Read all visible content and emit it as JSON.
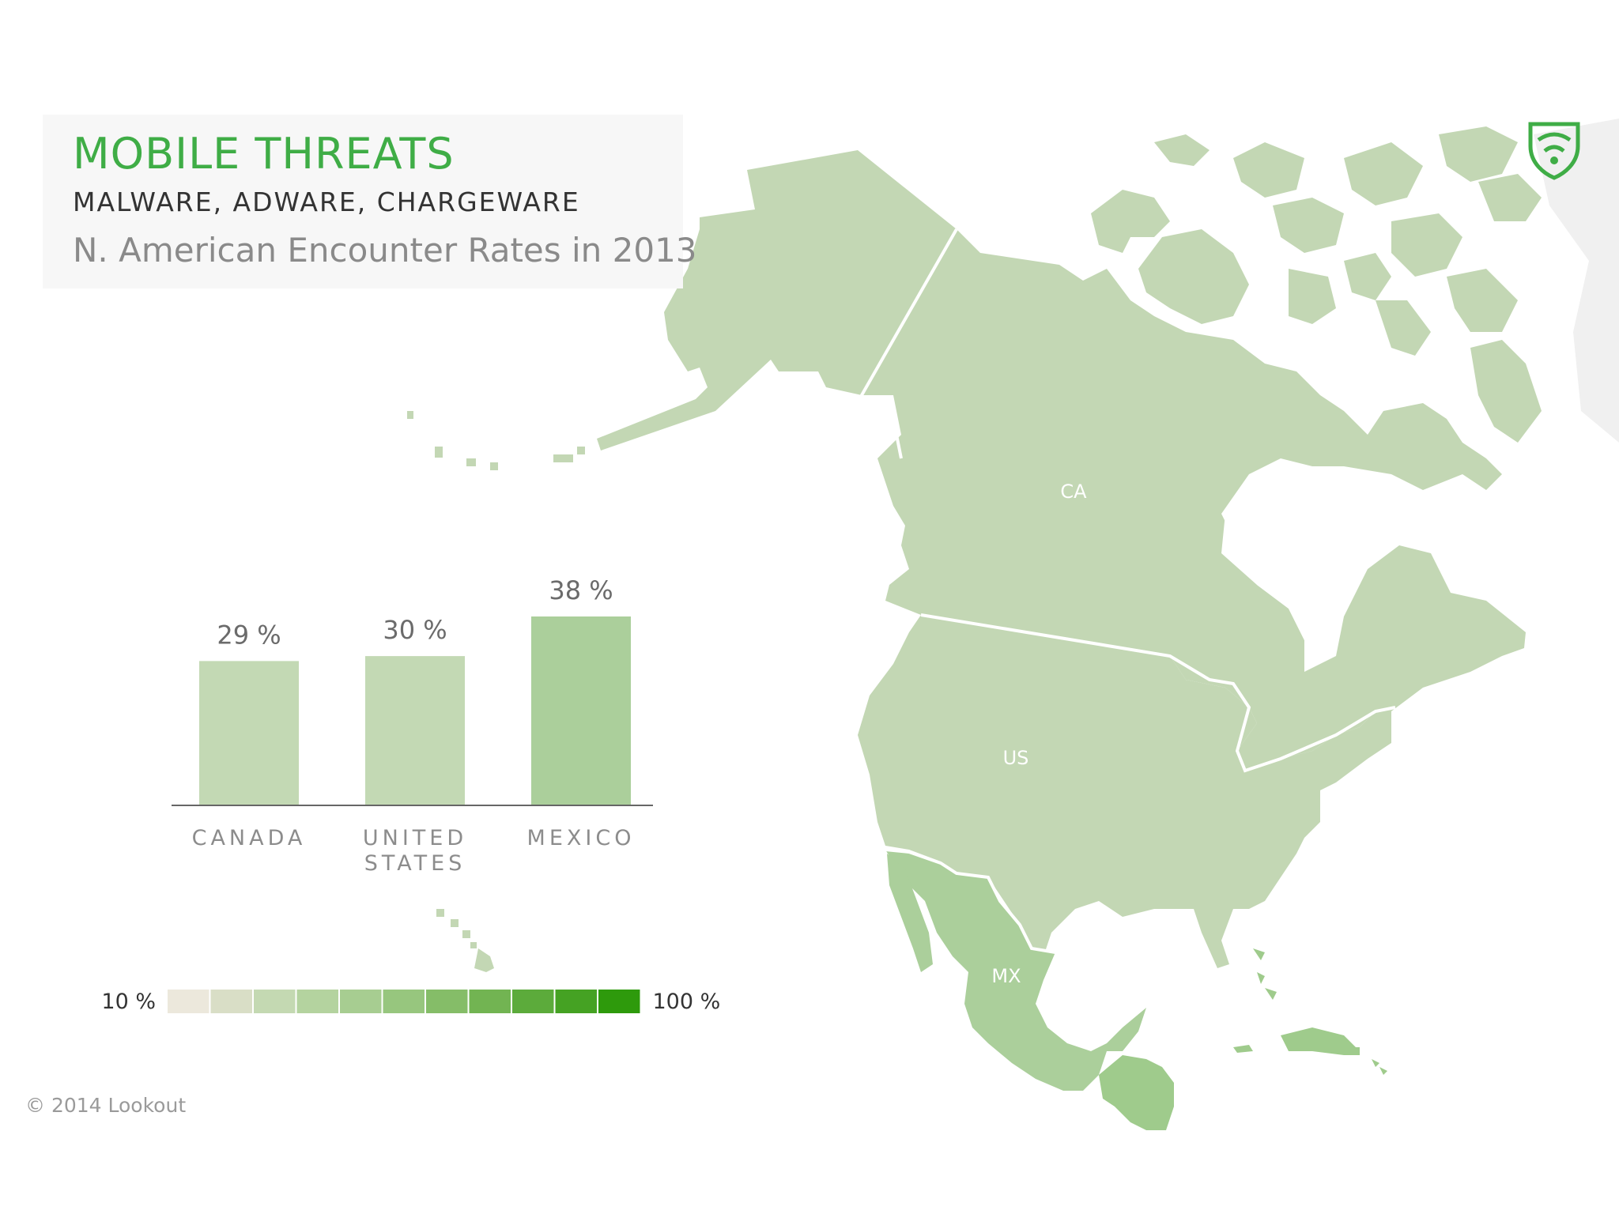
{
  "header": {
    "title": "MOBILE THREATS",
    "subtitle": "MALWARE, ADWARE, CHARGEWARE",
    "description": "N. American Encounter Rates in 2013"
  },
  "chart_data": {
    "type": "bar",
    "categories": [
      "CANADA",
      "UNITED STATES",
      "MEXICO"
    ],
    "category_lines": [
      [
        "CANADA"
      ],
      [
        "UNITED",
        "STATES"
      ],
      [
        "MEXICO"
      ]
    ],
    "values": [
      29,
      30,
      38
    ],
    "value_labels": [
      "29 %",
      "30 %",
      "38 %"
    ],
    "bar_colors": [
      "#c3d9b4",
      "#c3d9b4",
      "#abcf9b"
    ],
    "ylim": [
      0,
      38
    ],
    "grid": false,
    "legend": {
      "type": "color-scale",
      "min_label": "10 %",
      "max_label": "100 %",
      "colors": [
        "#ece8dc",
        "#d9dec6",
        "#c4d9b2",
        "#b4d39f",
        "#a7cd91",
        "#97c67e",
        "#85bd68",
        "#72b452",
        "#5cab3b",
        "#45a223",
        "#2e9a0c"
      ]
    }
  },
  "map": {
    "labels": [
      "CA",
      "US",
      "MX"
    ],
    "colors": {
      "canada": "#c3d7b4",
      "usa": "#c3d7b4",
      "mexico": "#abcf9b",
      "central_america": "#9fcb8c",
      "caribbean": "#9fcb8c",
      "greenland": "#f0f0f0"
    }
  },
  "logo": {
    "icon": "lookout-shield-icon",
    "color": "#3fad46"
  },
  "footer": {
    "copyright": "© 2014 Lookout"
  }
}
